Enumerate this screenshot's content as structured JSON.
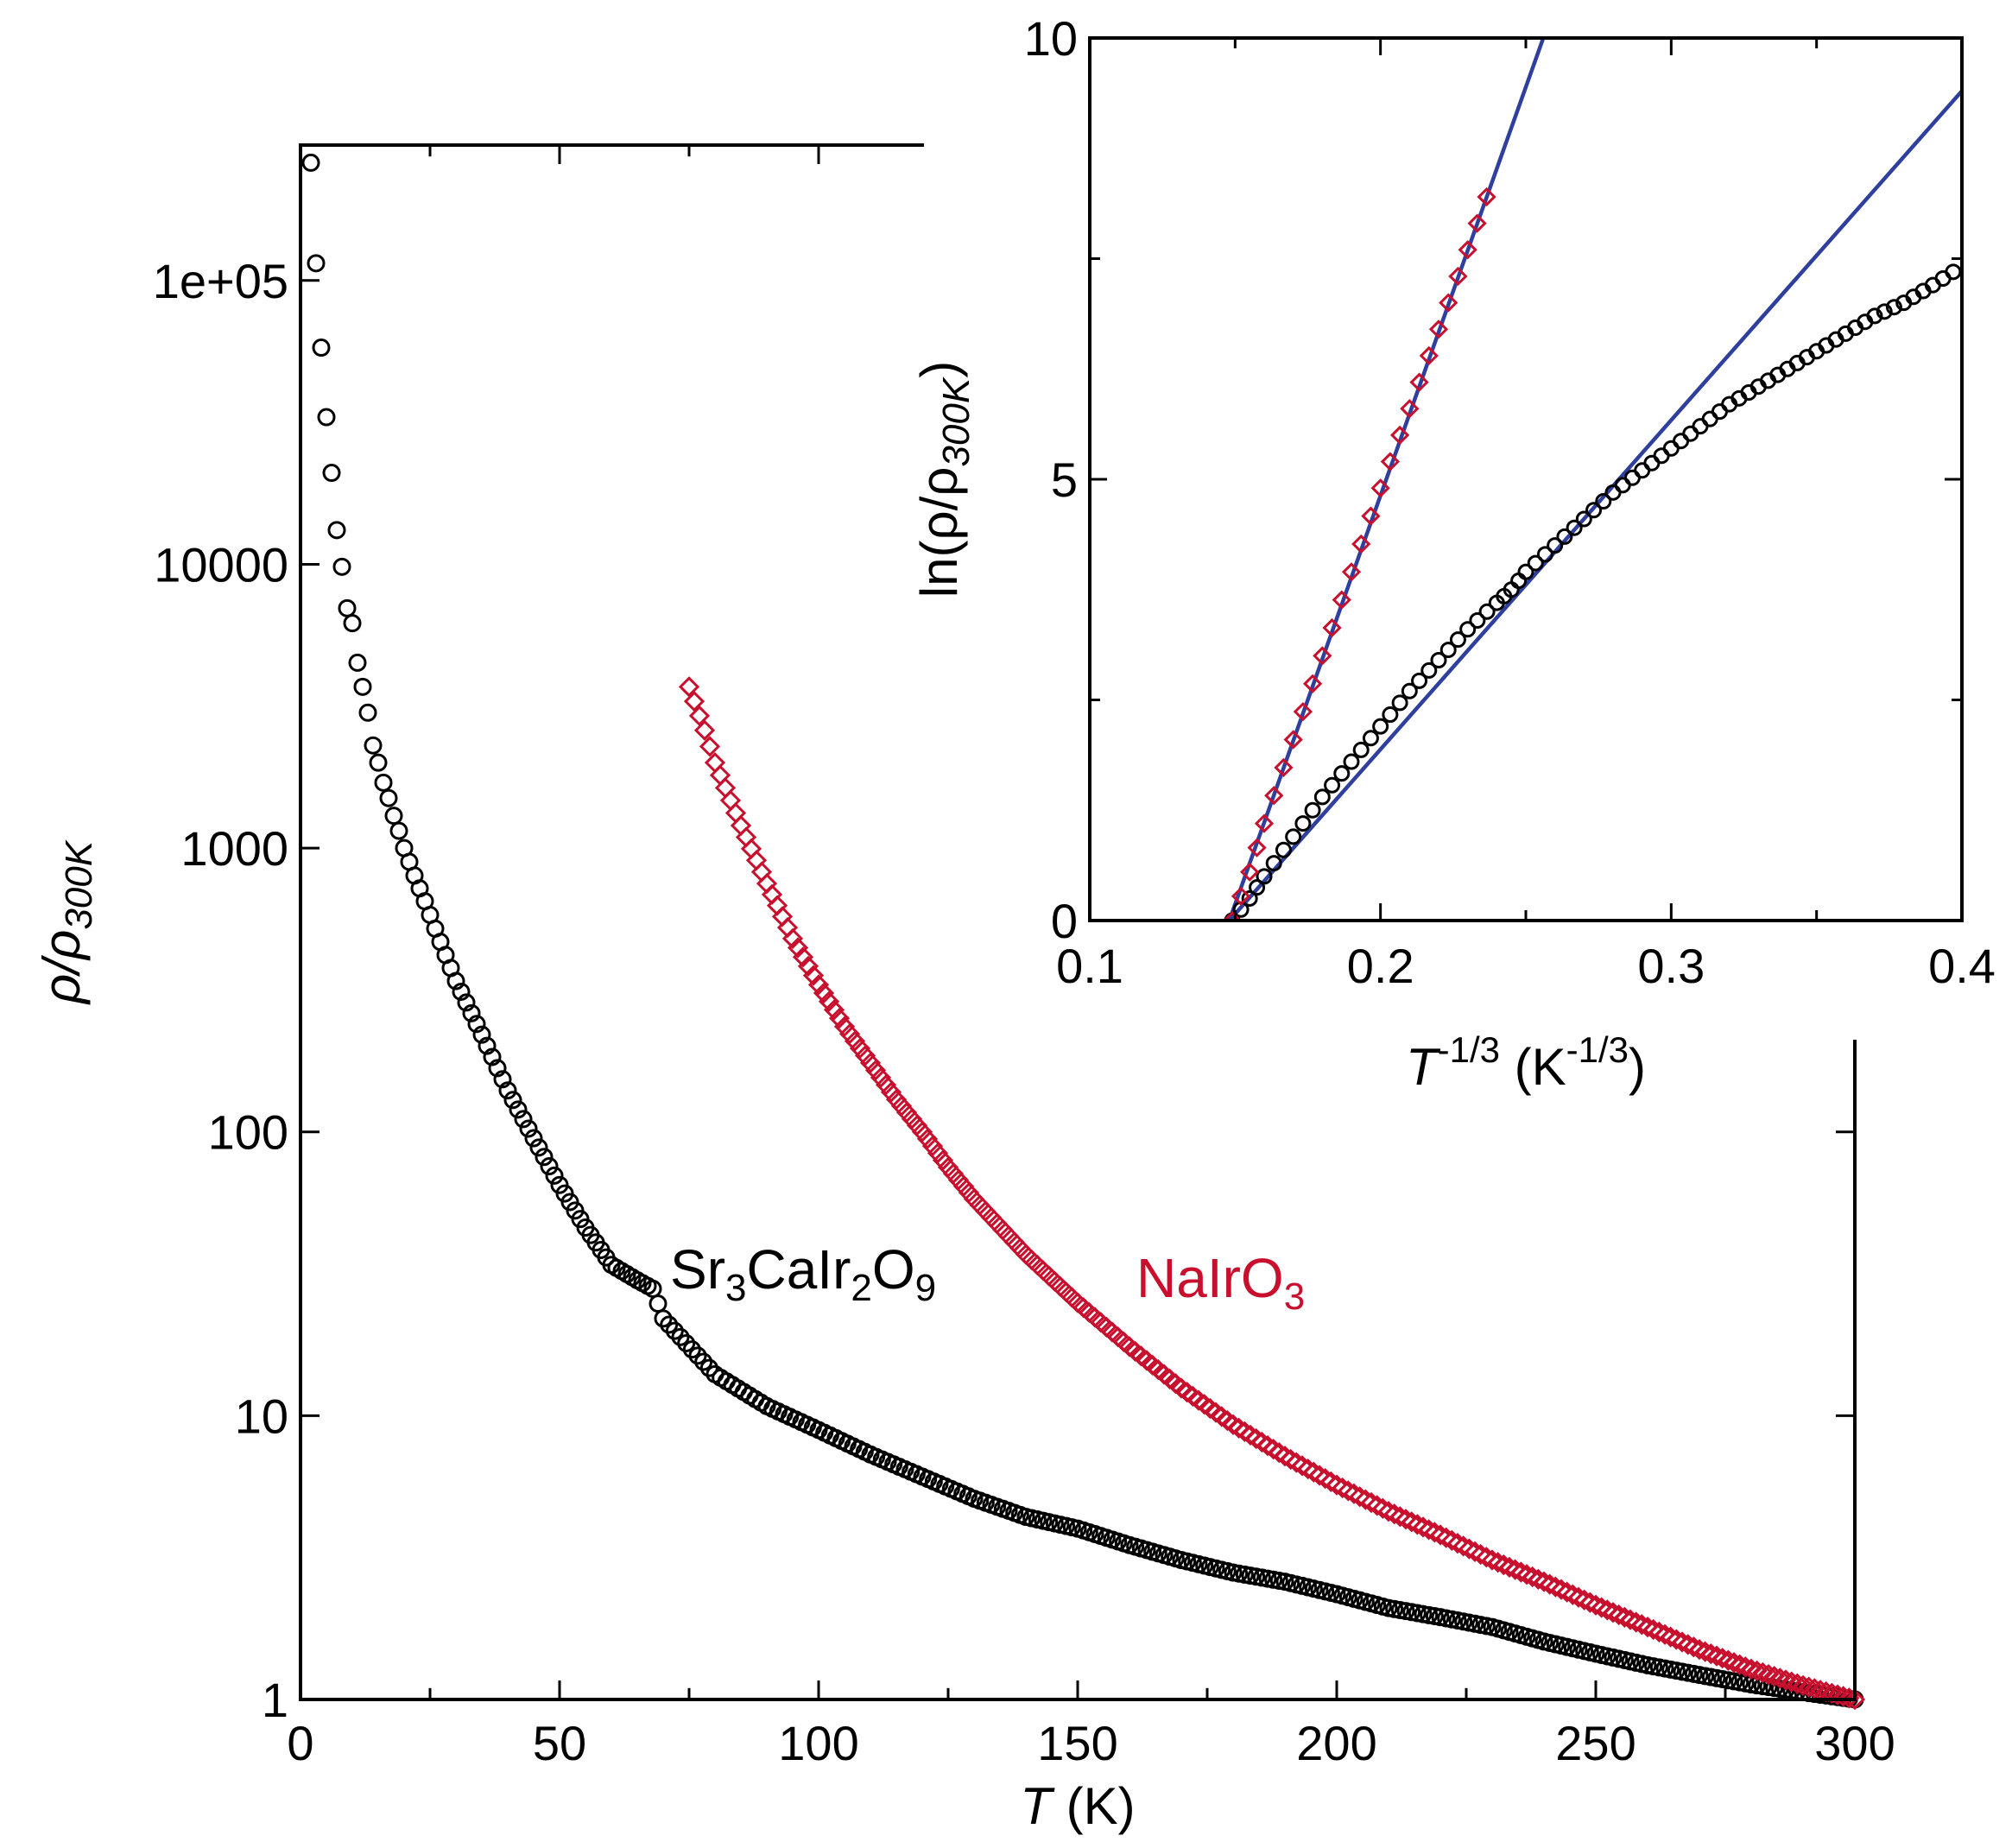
{
  "chart_data": [
    {
      "id": "main",
      "type": "scatter",
      "xlabel_var": "T",
      "xlabel_unit": " (K)",
      "ylabel_main": "ρ/ρ",
      "ylabel_sub": "300K",
      "yscale": "log",
      "xlim": [
        0,
        300
      ],
      "ylim": [
        1,
        300000
      ],
      "x_ticks": [
        0,
        50,
        100,
        150,
        200,
        250,
        300
      ],
      "x_tick_labels": [
        "0",
        "50",
        "100",
        "150",
        "200",
        "250",
        "300"
      ],
      "y_ticks": [
        1,
        10,
        100,
        1000,
        10000,
        100000
      ],
      "y_tick_labels": [
        "1",
        "10",
        "100",
        "1000",
        "10000",
        "1e+05"
      ],
      "series": [
        {
          "name": "Sr3CaIr2O9",
          "label_parts": [
            "Sr",
            "3",
            "CaIr",
            "2",
            "O",
            "9"
          ],
          "color": "#000000",
          "marker": "circle",
          "x": [
            2,
            3,
            4,
            5,
            6,
            7,
            8,
            9,
            10,
            11,
            12,
            13,
            14,
            15,
            16,
            17,
            18,
            19,
            20,
            22,
            24,
            26,
            28,
            30,
            35,
            40,
            45,
            50,
            55,
            60,
            65,
            68,
            70,
            80,
            90,
            100,
            110,
            120,
            130,
            140,
            150,
            160,
            170,
            180,
            190,
            200,
            210,
            220,
            230,
            240,
            250,
            260,
            270,
            280,
            290,
            300
          ],
          "y": [
            260000,
            115000,
            58000,
            33000,
            21000,
            13200,
            9800,
            7000,
            6200,
            4500,
            3700,
            3000,
            2300,
            2000,
            1700,
            1500,
            1300,
            1150,
            1000,
            800,
            650,
            520,
            420,
            340,
            220,
            140,
            95,
            65,
            46,
            34,
            30,
            28,
            22,
            14,
            10.8,
            8.9,
            7.3,
            6.1,
            5.1,
            4.4,
            4.0,
            3.5,
            3.1,
            2.8,
            2.6,
            2.35,
            2.1,
            1.95,
            1.8,
            1.6,
            1.45,
            1.32,
            1.22,
            1.13,
            1.06,
            1.0
          ]
        },
        {
          "name": "NaIrO3",
          "label_parts": [
            "NaIrO",
            "3"
          ],
          "color": "#c8102e",
          "marker": "diamond",
          "x": [
            75,
            78,
            80,
            85,
            90,
            95,
            100,
            105,
            110,
            115,
            120,
            125,
            130,
            140,
            150,
            160,
            170,
            180,
            190,
            200,
            210,
            220,
            230,
            240,
            250,
            260,
            270,
            280,
            290,
            300
          ],
          "y": [
            3700,
            2600,
            2000,
            1200,
            750,
            480,
            330,
            235,
            175,
            130,
            100,
            75,
            58,
            37,
            25,
            17.5,
            12.5,
            9.3,
            7.2,
            5.7,
            4.6,
            3.8,
            3.1,
            2.6,
            2.15,
            1.8,
            1.5,
            1.28,
            1.12,
            1.0
          ]
        }
      ]
    },
    {
      "id": "inset",
      "type": "scatter",
      "xlabel_var": "T",
      "xlabel_sup": "-1/3",
      "xlabel_unit": " (K",
      "xlabel_unit_sup": "-1/3",
      "xlabel_close": ")",
      "ylabel_main": "ln(ρ/ρ",
      "ylabel_sub": "300K",
      "ylabel_close": ")",
      "xlim": [
        0.1,
        0.4
      ],
      "ylim": [
        0,
        10
      ],
      "x_ticks": [
        0.1,
        0.2,
        0.3,
        0.4
      ],
      "x_tick_labels": [
        "0.1",
        "0.2",
        "0.3",
        "0.4"
      ],
      "y_ticks": [
        0,
        5,
        10
      ],
      "y_tick_labels": [
        "0",
        "5",
        "10"
      ],
      "series": [
        {
          "name": "Sr3CaIr2O9",
          "color": "#000000",
          "marker": "circle",
          "x": [
            0.149,
            0.155,
            0.16,
            0.17,
            0.18,
            0.19,
            0.2,
            0.21,
            0.22,
            0.23,
            0.24,
            0.245,
            0.25,
            0.26,
            0.27,
            0.28,
            0.29,
            0.3,
            0.31,
            0.32,
            0.33,
            0.34,
            0.35,
            0.36,
            0.37,
            0.38,
            0.39,
            0.397
          ],
          "y": [
            0,
            0.25,
            0.5,
            0.95,
            1.4,
            1.8,
            2.2,
            2.6,
            2.95,
            3.3,
            3.6,
            3.75,
            3.95,
            4.25,
            4.55,
            4.85,
            5.1,
            5.35,
            5.6,
            5.85,
            6.05,
            6.25,
            6.45,
            6.65,
            6.85,
            7.0,
            7.2,
            7.35
          ]
        },
        {
          "name": "NaIrO3",
          "color": "#c8102e",
          "marker": "diamond",
          "x": [
            0.149,
            0.155,
            0.16,
            0.17,
            0.18,
            0.19,
            0.2,
            0.21,
            0.22,
            0.23,
            0.2365
          ],
          "y": [
            0,
            0.55,
            1.1,
            2.05,
            3.0,
            3.95,
            4.9,
            5.8,
            6.7,
            7.6,
            8.2
          ]
        }
      ],
      "fits": [
        {
          "name": "fit-NaIrO3",
          "color": "#2e3f9e",
          "x": [
            0.148,
            0.256
          ],
          "y": [
            0,
            10
          ]
        },
        {
          "name": "fit-Sr3CaIr2O9",
          "color": "#2e3f9e",
          "x": [
            0.148,
            0.4
          ],
          "y": [
            0,
            9.4
          ]
        }
      ]
    }
  ]
}
